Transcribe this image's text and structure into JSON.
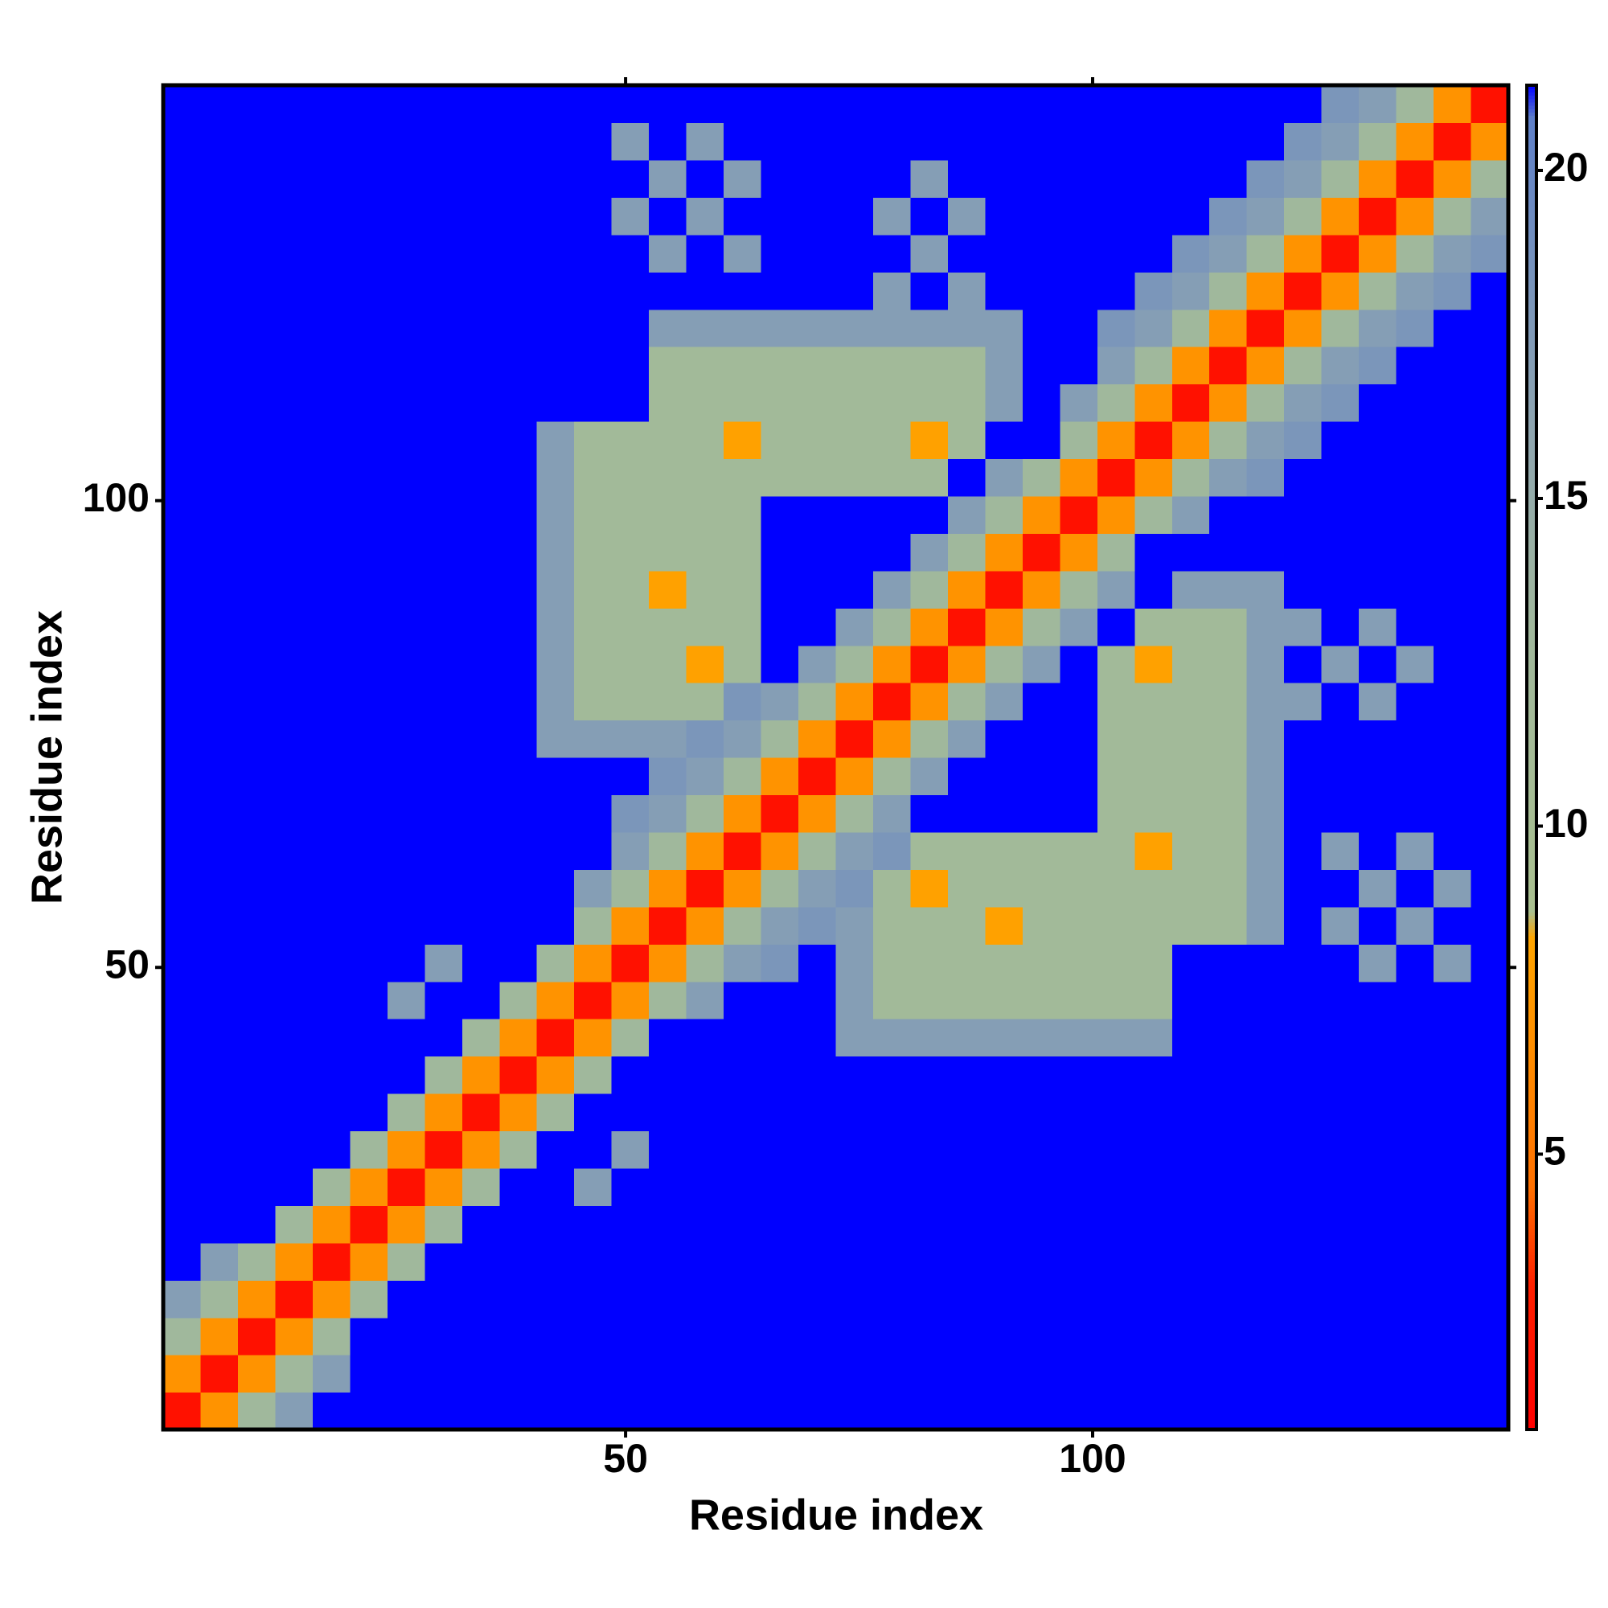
{
  "chart_data": {
    "type": "heatmap",
    "xlabel": "Residue index",
    "ylabel": "Residue index",
    "x": [
      1,
      5,
      9,
      13,
      17,
      21,
      25,
      29,
      33,
      37,
      41,
      45,
      49,
      53,
      57,
      61,
      65,
      69,
      73,
      77,
      81,
      85,
      89,
      93,
      97,
      101,
      105,
      109,
      113,
      117,
      121,
      125,
      129,
      133,
      137,
      141
    ],
    "y": [
      1,
      5,
      9,
      13,
      17,
      21,
      25,
      29,
      33,
      37,
      41,
      45,
      49,
      53,
      57,
      61,
      65,
      69,
      73,
      77,
      81,
      85,
      89,
      93,
      97,
      101,
      105,
      109,
      113,
      117,
      121,
      125,
      129,
      133,
      137,
      141
    ],
    "z": [
      [
        2,
        7,
        13,
        17,
        22,
        22,
        22,
        22,
        22,
        22,
        22,
        22,
        22,
        22,
        22,
        22,
        22,
        22,
        22,
        22,
        22,
        22,
        22,
        22,
        22,
        22,
        22,
        22,
        22,
        22,
        22,
        22,
        22,
        22,
        22,
        22
      ],
      [
        7,
        2,
        7,
        13,
        17,
        22,
        22,
        22,
        22,
        22,
        22,
        22,
        22,
        22,
        22,
        22,
        22,
        22,
        22,
        22,
        22,
        22,
        22,
        22,
        22,
        22,
        22,
        22,
        22,
        22,
        22,
        22,
        22,
        22,
        22,
        22
      ],
      [
        13,
        7,
        2,
        7,
        13,
        22,
        22,
        22,
        22,
        22,
        22,
        22,
        22,
        22,
        22,
        22,
        22,
        22,
        22,
        22,
        22,
        22,
        22,
        22,
        22,
        22,
        22,
        22,
        22,
        22,
        22,
        22,
        22,
        22,
        22,
        22
      ],
      [
        17,
        13,
        7,
        2,
        7,
        13,
        22,
        22,
        22,
        22,
        22,
        22,
        22,
        22,
        22,
        22,
        22,
        22,
        22,
        22,
        22,
        22,
        22,
        22,
        22,
        22,
        22,
        22,
        22,
        22,
        22,
        22,
        22,
        22,
        22,
        22
      ],
      [
        22,
        17,
        13,
        7,
        2,
        7,
        13,
        22,
        22,
        22,
        22,
        22,
        22,
        22,
        22,
        22,
        22,
        22,
        22,
        22,
        22,
        22,
        22,
        22,
        22,
        22,
        22,
        22,
        22,
        22,
        22,
        22,
        22,
        22,
        22,
        22
      ],
      [
        22,
        22,
        22,
        13,
        7,
        2,
        7,
        13,
        22,
        22,
        22,
        22,
        22,
        22,
        22,
        22,
        22,
        22,
        22,
        22,
        22,
        22,
        22,
        22,
        22,
        22,
        22,
        22,
        22,
        22,
        22,
        22,
        22,
        22,
        22,
        22
      ],
      [
        22,
        22,
        22,
        22,
        13,
        7,
        2,
        7,
        13,
        22,
        22,
        17,
        22,
        22,
        22,
        22,
        22,
        22,
        22,
        22,
        22,
        22,
        22,
        22,
        22,
        22,
        22,
        22,
        22,
        22,
        22,
        22,
        22,
        22,
        22,
        22
      ],
      [
        22,
        22,
        22,
        22,
        22,
        13,
        7,
        2,
        7,
        13,
        22,
        22,
        17,
        22,
        22,
        22,
        22,
        22,
        22,
        22,
        22,
        22,
        22,
        22,
        22,
        22,
        22,
        22,
        22,
        22,
        22,
        22,
        22,
        22,
        22,
        22
      ],
      [
        22,
        22,
        22,
        22,
        22,
        22,
        13,
        7,
        2,
        7,
        13,
        22,
        22,
        22,
        22,
        22,
        22,
        22,
        22,
        22,
        22,
        22,
        22,
        22,
        22,
        22,
        22,
        22,
        22,
        22,
        22,
        22,
        22,
        22,
        22,
        22
      ],
      [
        22,
        22,
        22,
        22,
        22,
        22,
        22,
        13,
        7,
        2,
        7,
        13,
        22,
        22,
        22,
        22,
        22,
        22,
        22,
        22,
        22,
        22,
        22,
        22,
        22,
        22,
        22,
        22,
        22,
        22,
        22,
        22,
        22,
        22,
        22,
        22
      ],
      [
        22,
        22,
        22,
        22,
        22,
        22,
        22,
        22,
        13,
        7,
        2,
        7,
        13,
        22,
        22,
        22,
        22,
        22,
        17,
        17,
        17,
        17,
        17,
        17,
        17,
        17,
        17,
        22,
        22,
        22,
        22,
        22,
        22,
        22,
        22,
        22
      ],
      [
        22,
        22,
        22,
        22,
        22,
        22,
        17,
        22,
        22,
        13,
        7,
        2,
        7,
        13,
        17,
        22,
        22,
        22,
        17,
        12,
        12,
        12,
        12,
        12,
        12,
        12,
        12,
        22,
        22,
        22,
        22,
        22,
        22,
        22,
        22,
        22
      ],
      [
        22,
        22,
        22,
        22,
        22,
        22,
        22,
        17,
        22,
        22,
        13,
        7,
        2,
        7,
        13,
        17,
        18,
        22,
        17,
        12,
        12,
        12,
        12,
        12,
        12,
        12,
        12,
        22,
        22,
        22,
        22,
        22,
        17,
        22,
        17,
        22
      ],
      [
        22,
        22,
        22,
        22,
        22,
        22,
        22,
        22,
        22,
        22,
        22,
        13,
        7,
        2,
        7,
        13,
        17,
        18,
        17,
        12,
        12,
        12,
        8,
        12,
        12,
        12,
        12,
        12,
        12,
        17,
        22,
        17,
        22,
        17,
        22,
        22
      ],
      [
        22,
        22,
        22,
        22,
        22,
        22,
        22,
        22,
        22,
        22,
        22,
        17,
        13,
        7,
        2,
        7,
        13,
        17,
        18,
        12,
        8,
        12,
        12,
        12,
        12,
        12,
        12,
        12,
        12,
        17,
        22,
        22,
        17,
        22,
        17,
        22
      ],
      [
        22,
        22,
        22,
        22,
        22,
        22,
        22,
        22,
        22,
        22,
        22,
        22,
        17,
        13,
        7,
        2,
        7,
        13,
        17,
        18,
        12,
        12,
        12,
        12,
        12,
        12,
        8,
        12,
        12,
        17,
        22,
        17,
        22,
        17,
        22,
        22
      ],
      [
        22,
        22,
        22,
        22,
        22,
        22,
        22,
        22,
        22,
        22,
        22,
        22,
        18,
        17,
        13,
        7,
        2,
        7,
        13,
        17,
        22,
        22,
        22,
        22,
        22,
        12,
        12,
        12,
        12,
        17,
        22,
        22,
        22,
        22,
        22,
        22
      ],
      [
        22,
        22,
        22,
        22,
        22,
        22,
        22,
        22,
        22,
        22,
        22,
        22,
        22,
        18,
        17,
        13,
        7,
        2,
        7,
        13,
        17,
        22,
        22,
        22,
        22,
        12,
        12,
        12,
        12,
        17,
        22,
        22,
        22,
        22,
        22,
        22
      ],
      [
        22,
        22,
        22,
        22,
        22,
        22,
        22,
        22,
        22,
        22,
        17,
        17,
        17,
        17,
        18,
        17,
        13,
        7,
        2,
        7,
        13,
        17,
        22,
        22,
        22,
        12,
        12,
        12,
        12,
        17,
        22,
        22,
        22,
        22,
        22,
        22
      ],
      [
        22,
        22,
        22,
        22,
        22,
        22,
        22,
        22,
        22,
        22,
        17,
        12,
        12,
        12,
        12,
        18,
        17,
        13,
        7,
        2,
        7,
        13,
        17,
        22,
        22,
        12,
        12,
        12,
        12,
        17,
        17,
        22,
        17,
        22,
        22,
        22
      ],
      [
        22,
        22,
        22,
        22,
        22,
        22,
        22,
        22,
        22,
        22,
        17,
        12,
        12,
        12,
        8,
        12,
        22,
        17,
        13,
        7,
        2,
        7,
        13,
        17,
        22,
        12,
        8,
        12,
        12,
        17,
        22,
        17,
        22,
        17,
        22,
        22
      ],
      [
        22,
        22,
        22,
        22,
        22,
        22,
        22,
        22,
        22,
        22,
        17,
        12,
        12,
        12,
        12,
        12,
        22,
        22,
        17,
        13,
        7,
        2,
        7,
        13,
        17,
        22,
        12,
        12,
        12,
        17,
        17,
        22,
        17,
        22,
        22,
        22
      ],
      [
        22,
        22,
        22,
        22,
        22,
        22,
        22,
        22,
        22,
        22,
        17,
        12,
        12,
        8,
        12,
        12,
        22,
        22,
        22,
        17,
        13,
        7,
        2,
        7,
        13,
        17,
        22,
        17,
        17,
        17,
        22,
        22,
        22,
        22,
        22,
        22
      ],
      [
        22,
        22,
        22,
        22,
        22,
        22,
        22,
        22,
        22,
        22,
        17,
        12,
        12,
        12,
        12,
        12,
        22,
        22,
        22,
        22,
        17,
        13,
        7,
        2,
        7,
        13,
        22,
        22,
        22,
        22,
        22,
        22,
        22,
        22,
        22,
        22
      ],
      [
        22,
        22,
        22,
        22,
        22,
        22,
        22,
        22,
        22,
        22,
        17,
        12,
        12,
        12,
        12,
        12,
        22,
        22,
        22,
        22,
        22,
        17,
        13,
        7,
        2,
        7,
        13,
        17,
        22,
        22,
        22,
        22,
        22,
        22,
        22,
        22
      ],
      [
        22,
        22,
        22,
        22,
        22,
        22,
        22,
        22,
        22,
        22,
        17,
        12,
        12,
        12,
        12,
        12,
        12,
        12,
        12,
        12,
        12,
        22,
        17,
        13,
        7,
        2,
        7,
        13,
        17,
        18,
        22,
        22,
        22,
        22,
        22,
        22
      ],
      [
        22,
        22,
        22,
        22,
        22,
        22,
        22,
        22,
        22,
        22,
        17,
        12,
        12,
        12,
        12,
        8,
        12,
        12,
        12,
        12,
        8,
        12,
        22,
        22,
        13,
        7,
        2,
        7,
        13,
        17,
        18,
        22,
        22,
        22,
        22,
        22
      ],
      [
        22,
        22,
        22,
        22,
        22,
        22,
        22,
        22,
        22,
        22,
        22,
        22,
        22,
        12,
        12,
        12,
        12,
        12,
        12,
        12,
        12,
        12,
        17,
        22,
        17,
        13,
        7,
        2,
        7,
        13,
        17,
        18,
        22,
        22,
        22,
        22
      ],
      [
        22,
        22,
        22,
        22,
        22,
        22,
        22,
        22,
        22,
        22,
        22,
        22,
        22,
        12,
        12,
        12,
        12,
        12,
        12,
        12,
        12,
        12,
        17,
        22,
        22,
        17,
        13,
        7,
        2,
        7,
        13,
        17,
        18,
        22,
        22,
        22
      ],
      [
        22,
        22,
        22,
        22,
        22,
        22,
        22,
        22,
        22,
        22,
        22,
        22,
        22,
        17,
        17,
        17,
        17,
        17,
        17,
        17,
        17,
        17,
        17,
        22,
        22,
        18,
        17,
        13,
        7,
        2,
        7,
        13,
        17,
        18,
        22,
        22
      ],
      [
        22,
        22,
        22,
        22,
        22,
        22,
        22,
        22,
        22,
        22,
        22,
        22,
        22,
        22,
        22,
        22,
        22,
        22,
        22,
        17,
        22,
        17,
        22,
        22,
        22,
        22,
        18,
        17,
        13,
        7,
        2,
        7,
        13,
        17,
        18,
        22
      ],
      [
        22,
        22,
        22,
        22,
        22,
        22,
        22,
        22,
        22,
        22,
        22,
        22,
        22,
        17,
        22,
        17,
        22,
        22,
        22,
        22,
        17,
        22,
        22,
        22,
        22,
        22,
        22,
        18,
        17,
        13,
        7,
        2,
        7,
        13,
        17,
        18
      ],
      [
        22,
        22,
        22,
        22,
        22,
        22,
        22,
        22,
        22,
        22,
        22,
        22,
        17,
        22,
        17,
        22,
        22,
        22,
        22,
        17,
        22,
        17,
        22,
        22,
        22,
        22,
        22,
        22,
        18,
        17,
        13,
        7,
        2,
        7,
        13,
        17
      ],
      [
        22,
        22,
        22,
        22,
        22,
        22,
        22,
        22,
        22,
        22,
        22,
        22,
        22,
        17,
        22,
        17,
        22,
        22,
        22,
        22,
        17,
        22,
        22,
        22,
        22,
        22,
        22,
        22,
        22,
        18,
        17,
        13,
        7,
        2,
        7,
        13
      ],
      [
        22,
        22,
        22,
        22,
        22,
        22,
        22,
        22,
        22,
        22,
        22,
        22,
        17,
        22,
        17,
        22,
        22,
        22,
        22,
        22,
        22,
        22,
        22,
        22,
        22,
        22,
        22,
        22,
        22,
        22,
        18,
        17,
        13,
        7,
        2,
        7
      ],
      [
        22,
        22,
        22,
        22,
        22,
        22,
        22,
        22,
        22,
        22,
        22,
        22,
        22,
        22,
        22,
        22,
        22,
        22,
        22,
        22,
        22,
        22,
        22,
        22,
        22,
        22,
        22,
        22,
        22,
        22,
        22,
        18,
        17,
        13,
        7,
        2
      ]
    ],
    "xlim": [
      0.5,
      144.5
    ],
    "ylim": [
      0.5,
      144.5
    ],
    "xticks": [
      50,
      100
    ],
    "yticks": [
      50,
      100
    ],
    "colorbar": {
      "zlim": [
        0.8,
        21.3
      ],
      "ticks": [
        5,
        10,
        15,
        20
      ],
      "colorscale": [
        [
          0.8,
          "#ff0000"
        ],
        [
          3,
          "#ff2000"
        ],
        [
          4.5,
          "#ff7000"
        ],
        [
          8.3,
          "#ffa500"
        ],
        [
          8.7,
          "#a9c08f"
        ],
        [
          13,
          "#a0b89c"
        ],
        [
          16,
          "#8fa6b0"
        ],
        [
          20.8,
          "#5f80c8"
        ],
        [
          21.3,
          "#0000ff"
        ]
      ]
    }
  }
}
